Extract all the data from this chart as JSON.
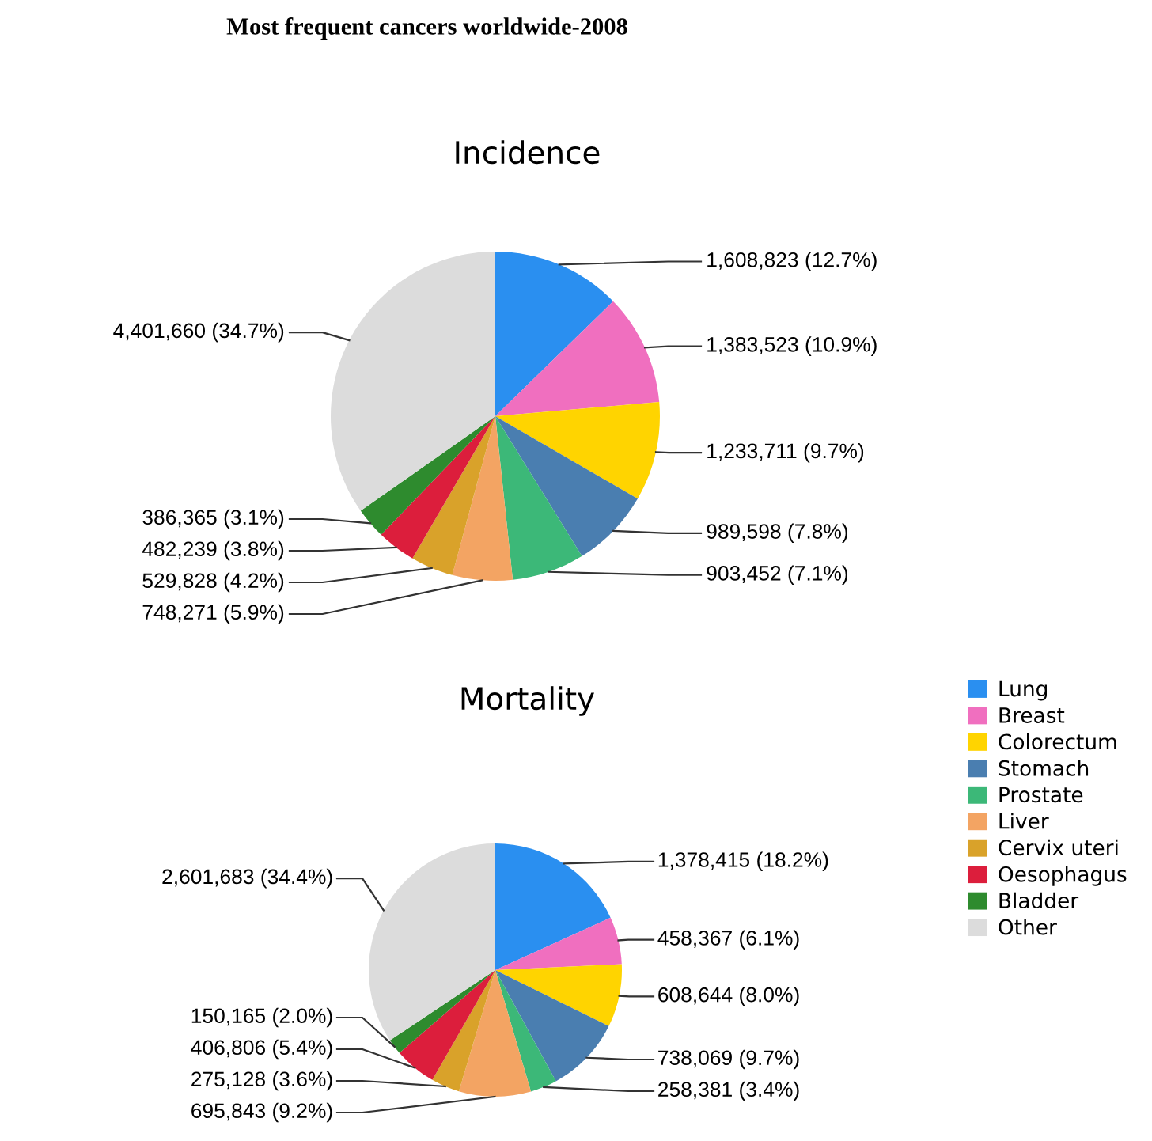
{
  "chart_data": [
    {
      "type": "pie",
      "title": "Most frequent cancers worldwide-2008",
      "subtitle": "Incidence",
      "categories": [
        null,
        null,
        null,
        null,
        null,
        null,
        null,
        null,
        null,
        null
      ],
      "values": [
        1608823,
        1383523,
        1233711,
        989598,
        903452,
        748271,
        529828,
        482239,
        386365,
        4401660
      ],
      "value_labels": [
        "1,608,823 (12.7%)",
        "1,383,523 (10.9%)",
        "1,233,711 (9.7%)",
        "989,598 (7.8%)",
        "903,452 (7.1%)",
        "748,271 (5.9%)",
        "529,828 (4.2%)",
        "482,239 (3.8%)",
        "386,365 (3.1%)",
        "4,401,660 (34.7%)"
      ],
      "colors": [
        "#2a8ff0",
        "#f06fbf",
        "#ffd400",
        "#4a7eb0",
        "#3cb878",
        "#f3a463",
        "#d9a22a",
        "#dc1e3c",
        "#2e8b2e",
        "#dcdcdc"
      ],
      "legend": false
    },
    {
      "type": "pie",
      "subtitle": "Mortality",
      "categories": [
        "Lung",
        "Breast",
        "Colorectum",
        "Stomach",
        "Prostate",
        "Liver",
        "Cervix uteri",
        "Oesophagus",
        "Bladder",
        "Other"
      ],
      "values": [
        1378415,
        458367,
        608644,
        738069,
        258381,
        695843,
        275128,
        406806,
        150165,
        2601683
      ],
      "value_labels": [
        "1,378,415 (18.2%)",
        "458,367 (6.1%)",
        "608,644 (8.0%)",
        "738,069 (9.7%)",
        "258,381 (3.4%)",
        "695,843 (9.2%)",
        "275,128 (3.6%)",
        "406,806 (5.4%)",
        "150,165 (2.0%)",
        "2,601,683 (34.4%)"
      ],
      "colors": [
        "#2a8ff0",
        "#f06fbf",
        "#ffd400",
        "#4a7eb0",
        "#3cb878",
        "#f3a463",
        "#d9a22a",
        "#dc1e3c",
        "#2e8b2e",
        "#dcdcdc"
      ],
      "legend": "right"
    }
  ]
}
